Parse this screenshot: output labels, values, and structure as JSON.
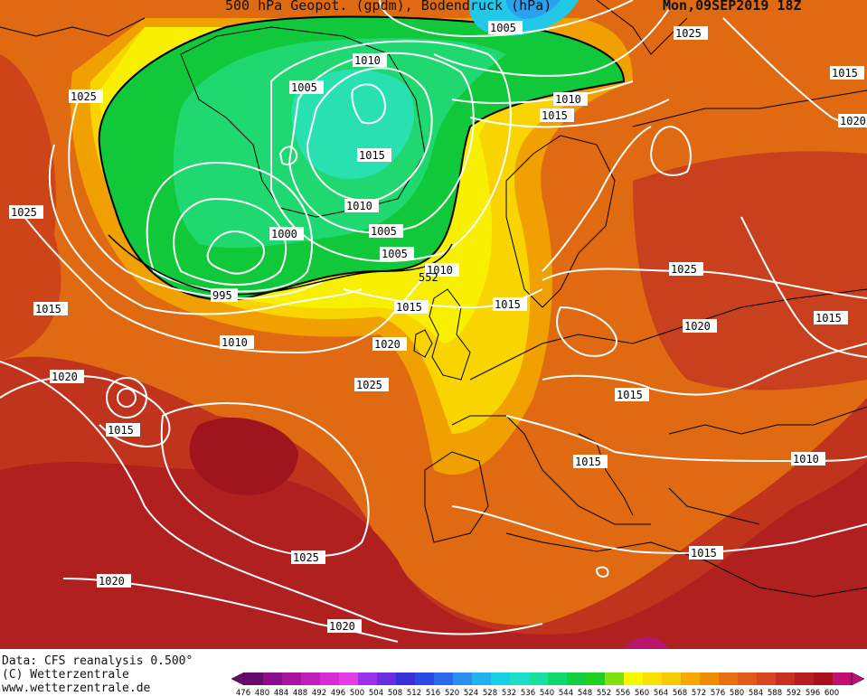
{
  "header": {
    "title": "500 hPa Geopot. (gpdm), Bodendruck (hPa)",
    "date": "Mon,09SEP2019 18Z"
  },
  "footer": {
    "line1": "Data: CFS reanalysis 0.500°",
    "line2": "(C) Wetterzentrale",
    "line3": "www.wetterzentrale.de"
  },
  "colorbar": {
    "ticks": [
      "476",
      "480",
      "484",
      "488",
      "492",
      "496",
      "500",
      "504",
      "508",
      "512",
      "516",
      "520",
      "524",
      "528",
      "532",
      "536",
      "540",
      "544",
      "548",
      "552",
      "556",
      "560",
      "564",
      "568",
      "572",
      "576",
      "580",
      "584",
      "588",
      "592",
      "596",
      "600"
    ],
    "colors": [
      "#6a0a6e",
      "#8c0d8e",
      "#a8149f",
      "#c21ebe",
      "#d82ad6",
      "#e63ce8",
      "#9b30e8",
      "#6a2ee0",
      "#3a30d8",
      "#2a4ae8",
      "#2a6ae8",
      "#2a90f0",
      "#22b2f0",
      "#18d0e8",
      "#18e0c8",
      "#18e0a0",
      "#10d870",
      "#10d040",
      "#20d020",
      "#80e010",
      "#f8f800",
      "#f8e000",
      "#f8c800",
      "#f8a800",
      "#f08c00",
      "#e87010",
      "#e05a18",
      "#d84820",
      "#c83020",
      "#b81e20",
      "#a8101e",
      "#c01070"
    ]
  },
  "map": {
    "background": "#e06010",
    "isobar_labels": [
      {
        "text": "1005",
        "kind": "iso"
      },
      {
        "text": "1025",
        "kind": "iso"
      },
      {
        "text": "1015",
        "kind": "iso"
      },
      {
        "text": "1020",
        "kind": "iso"
      },
      {
        "text": "1010",
        "kind": "iso"
      },
      {
        "text": "1005",
        "kind": "iso"
      },
      {
        "text": "1025",
        "kind": "iso"
      },
      {
        "text": "1010",
        "kind": "iso"
      },
      {
        "text": "1015",
        "kind": "iso"
      },
      {
        "text": "1025",
        "kind": "iso"
      },
      {
        "text": "1015",
        "kind": "iso"
      },
      {
        "text": "1010",
        "kind": "iso"
      },
      {
        "text": "1005",
        "kind": "iso"
      },
      {
        "text": "1005",
        "kind": "iso"
      },
      {
        "text": "1000",
        "kind": "iso"
      },
      {
        "text": "995",
        "kind": "iso"
      },
      {
        "text": "1010",
        "kind": "iso"
      },
      {
        "text": "552",
        "kind": "geo"
      },
      {
        "text": "1025",
        "kind": "iso"
      },
      {
        "text": "1015",
        "kind": "iso"
      },
      {
        "text": "1015",
        "kind": "iso"
      },
      {
        "text": "1015",
        "kind": "iso"
      },
      {
        "text": "1020",
        "kind": "iso"
      },
      {
        "text": "1010",
        "kind": "iso"
      },
      {
        "text": "1020",
        "kind": "iso"
      },
      {
        "text": "1020",
        "kind": "iso"
      },
      {
        "text": "1025",
        "kind": "iso"
      },
      {
        "text": "1015",
        "kind": "iso"
      },
      {
        "text": "1015",
        "kind": "iso"
      },
      {
        "text": "1015",
        "kind": "iso"
      },
      {
        "text": "1010",
        "kind": "iso"
      },
      {
        "text": "1015",
        "kind": "iso"
      },
      {
        "text": "1025",
        "kind": "iso"
      },
      {
        "text": "1020",
        "kind": "iso"
      },
      {
        "text": "1020",
        "kind": "iso"
      }
    ]
  }
}
